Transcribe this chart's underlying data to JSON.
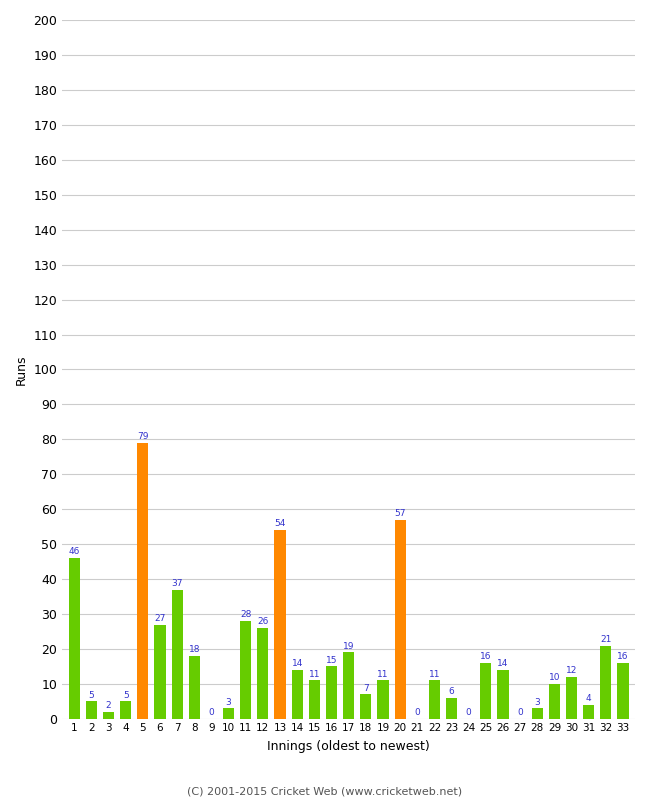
{
  "innings": [
    1,
    2,
    3,
    4,
    5,
    6,
    7,
    8,
    9,
    10,
    11,
    12,
    13,
    14,
    15,
    16,
    17,
    18,
    19,
    20,
    21,
    22,
    23,
    24,
    25,
    26,
    27,
    28,
    29,
    30,
    31,
    32,
    33
  ],
  "runs": [
    46,
    5,
    2,
    5,
    79,
    27,
    37,
    18,
    0,
    3,
    28,
    26,
    54,
    14,
    11,
    15,
    19,
    7,
    11,
    57,
    0,
    11,
    6,
    0,
    16,
    14,
    0,
    3,
    10,
    12,
    4,
    21,
    16
  ],
  "colors": [
    "#66cc00",
    "#66cc00",
    "#66cc00",
    "#66cc00",
    "#ff8800",
    "#66cc00",
    "#66cc00",
    "#66cc00",
    "#66cc00",
    "#66cc00",
    "#66cc00",
    "#66cc00",
    "#ff8800",
    "#66cc00",
    "#66cc00",
    "#66cc00",
    "#66cc00",
    "#66cc00",
    "#66cc00",
    "#ff8800",
    "#66cc00",
    "#66cc00",
    "#66cc00",
    "#66cc00",
    "#66cc00",
    "#66cc00",
    "#66cc00",
    "#66cc00",
    "#66cc00",
    "#66cc00",
    "#66cc00",
    "#66cc00",
    "#66cc00"
  ],
  "xlabel": "Innings (oldest to newest)",
  "ylabel": "Runs",
  "ylim": [
    0,
    200
  ],
  "yticks": [
    0,
    10,
    20,
    30,
    40,
    50,
    60,
    70,
    80,
    90,
    100,
    110,
    120,
    130,
    140,
    150,
    160,
    170,
    180,
    190,
    200
  ],
  "label_color": "#3333cc",
  "bar_width": 0.65,
  "background_color": "#ffffff",
  "grid_color": "#cccccc",
  "footer": "(C) 2001-2015 Cricket Web (www.cricketweb.net)"
}
